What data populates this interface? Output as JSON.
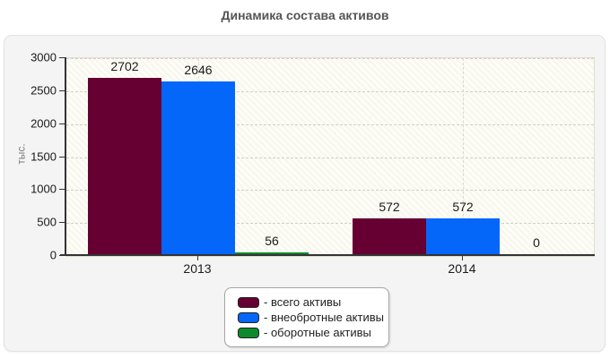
{
  "title": "Динамика состава активов",
  "chart_data": {
    "type": "bar",
    "title": "Динамика состава активов",
    "ylabel": "тыс.",
    "xlabel": "",
    "categories": [
      "2013",
      "2014"
    ],
    "series": [
      {
        "name": "всего активы",
        "color": "#660033",
        "values": [
          2702,
          572
        ]
      },
      {
        "name": "внеобротные активы",
        "color": "#0566fa",
        "values": [
          2646,
          572
        ]
      },
      {
        "name": "оборотные активы",
        "color": "#0e8a2e",
        "values": [
          56,
          0
        ]
      }
    ],
    "legend_labels": [
      "- всего активы",
      "- внеобротные активы",
      "- оборотные активы"
    ],
    "legend_position": "bottom-center",
    "ylim": [
      0,
      3000
    ],
    "y_ticks": [
      0,
      500,
      1000,
      1500,
      2000,
      2500,
      3000
    ],
    "grid": true,
    "grid_style": "dashed",
    "plot_background": "hatched-diagonal"
  }
}
